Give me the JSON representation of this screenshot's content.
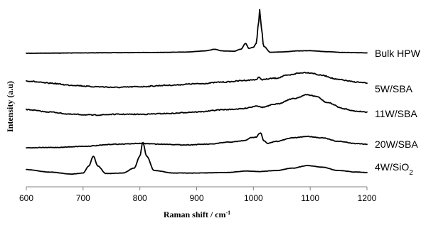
{
  "chart_data": {
    "type": "line",
    "xlabel": "Raman  shift / cm",
    "xlabel_sup": "-1",
    "ylabel": "Intensity  (a.u)",
    "xlim": [
      600,
      1200
    ],
    "x_ticks": [
      600,
      700,
      800,
      900,
      1000,
      1100,
      1200
    ],
    "grid": false,
    "legend": "none",
    "series": [
      {
        "name": "Bulk HPW",
        "name_sub": "",
        "points": [
          [
            600,
            0.0
          ],
          [
            650,
            0.01
          ],
          [
            700,
            0.02
          ],
          [
            760,
            0.03
          ],
          [
            820,
            0.04
          ],
          [
            880,
            0.06
          ],
          [
            915,
            0.12
          ],
          [
            932,
            0.2
          ],
          [
            945,
            0.12
          ],
          [
            965,
            0.1
          ],
          [
            978,
            0.2
          ],
          [
            986,
            0.5
          ],
          [
            992,
            0.25
          ],
          [
            1000,
            0.3
          ],
          [
            1005,
            0.5
          ],
          [
            1009,
            1.5
          ],
          [
            1011,
            2.2
          ],
          [
            1014,
            1.3
          ],
          [
            1018,
            0.35
          ],
          [
            1030,
            0.05
          ],
          [
            1050,
            0.07
          ],
          [
            1080,
            0.12
          ],
          [
            1100,
            0.13
          ],
          [
            1130,
            0.08
          ],
          [
            1160,
            0.04
          ],
          [
            1200,
            0.02
          ]
        ]
      },
      {
        "name": "5W/SBA",
        "name_sub": "",
        "points": [
          [
            600,
            0.45
          ],
          [
            640,
            0.3
          ],
          [
            680,
            0.15
          ],
          [
            720,
            0.05
          ],
          [
            760,
            0.0
          ],
          [
            800,
            0.05
          ],
          [
            850,
            0.15
          ],
          [
            900,
            0.25
          ],
          [
            950,
            0.38
          ],
          [
            990,
            0.5
          ],
          [
            1005,
            0.55
          ],
          [
            1010,
            0.7
          ],
          [
            1015,
            0.55
          ],
          [
            1040,
            0.65
          ],
          [
            1060,
            0.85
          ],
          [
            1080,
            1.0
          ],
          [
            1090,
            1.05
          ],
          [
            1100,
            1.02
          ],
          [
            1120,
            0.85
          ],
          [
            1150,
            0.55
          ],
          [
            1180,
            0.38
          ],
          [
            1200,
            0.3
          ]
        ]
      },
      {
        "name": "11W/SBA",
        "name_sub": "",
        "points": [
          [
            600,
            0.35
          ],
          [
            640,
            0.2
          ],
          [
            680,
            0.05
          ],
          [
            720,
            0.0
          ],
          [
            760,
            0.05
          ],
          [
            800,
            0.05
          ],
          [
            850,
            0.1
          ],
          [
            900,
            0.2
          ],
          [
            950,
            0.35
          ],
          [
            980,
            0.4
          ],
          [
            995,
            0.5
          ],
          [
            1005,
            0.6
          ],
          [
            1015,
            0.5
          ],
          [
            1040,
            0.7
          ],
          [
            1070,
            1.05
          ],
          [
            1095,
            1.3
          ],
          [
            1110,
            1.2
          ],
          [
            1130,
            0.8
          ],
          [
            1160,
            0.4
          ],
          [
            1180,
            0.25
          ],
          [
            1200,
            0.2
          ]
        ]
      },
      {
        "name": "20W/SBA",
        "name_sub": "",
        "points": [
          [
            600,
            0.0
          ],
          [
            650,
            0.02
          ],
          [
            700,
            0.1
          ],
          [
            760,
            0.25
          ],
          [
            800,
            0.3
          ],
          [
            840,
            0.25
          ],
          [
            880,
            0.2
          ],
          [
            920,
            0.25
          ],
          [
            960,
            0.4
          ],
          [
            985,
            0.5
          ],
          [
            995,
            0.7
          ],
          [
            1005,
            0.75
          ],
          [
            1010,
            1.0
          ],
          [
            1013,
            1.05
          ],
          [
            1018,
            0.5
          ],
          [
            1025,
            0.3
          ],
          [
            1040,
            0.45
          ],
          [
            1070,
            0.7
          ],
          [
            1095,
            0.8
          ],
          [
            1120,
            0.7
          ],
          [
            1150,
            0.45
          ],
          [
            1180,
            0.3
          ],
          [
            1200,
            0.25
          ]
        ]
      },
      {
        "name": "4W/SiO",
        "name_sub": "2",
        "points": [
          [
            600,
            0.45
          ],
          [
            640,
            0.2
          ],
          [
            680,
            0.0
          ],
          [
            700,
            0.1
          ],
          [
            710,
            0.8
          ],
          [
            718,
            1.8
          ],
          [
            726,
            0.8
          ],
          [
            740,
            0.05
          ],
          [
            770,
            0.1
          ],
          [
            790,
            0.6
          ],
          [
            800,
            1.8
          ],
          [
            805,
            3.2
          ],
          [
            812,
            1.8
          ],
          [
            825,
            0.35
          ],
          [
            860,
            0.1
          ],
          [
            900,
            0.1
          ],
          [
            950,
            0.15
          ],
          [
            990,
            0.3
          ],
          [
            1010,
            0.25
          ],
          [
            1040,
            0.35
          ],
          [
            1070,
            0.6
          ],
          [
            1095,
            0.85
          ],
          [
            1120,
            0.7
          ],
          [
            1150,
            0.35
          ],
          [
            1180,
            0.2
          ],
          [
            1200,
            0.15
          ]
        ]
      }
    ]
  }
}
